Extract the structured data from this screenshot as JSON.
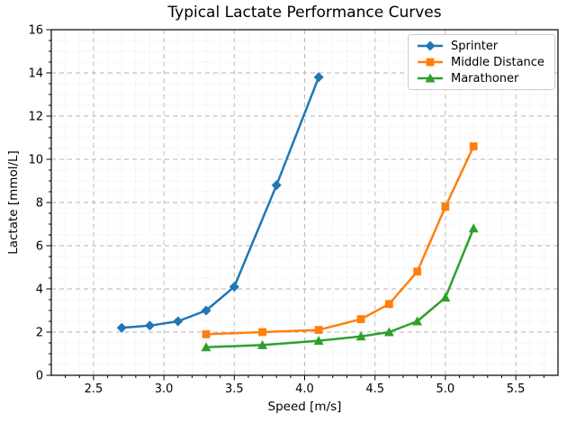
{
  "figure": {
    "background_color": "#ffffff",
    "spine_color": "#000000",
    "grid_major_color": "#b3b3b3",
    "grid_minor_color": "#d9d9d9"
  },
  "chart_data": {
    "type": "line",
    "title": "Typical Lactate Performance Curves",
    "xlabel": "Speed [m/s]",
    "ylabel": "Lactate [mmol/L]",
    "xlim": [
      2.2,
      5.8
    ],
    "ylim": [
      0,
      16
    ],
    "x_ticks": [
      2.5,
      3.0,
      3.5,
      4.0,
      4.5,
      5.0,
      5.5
    ],
    "x_tick_labels": [
      "2.5",
      "3.0",
      "3.5",
      "4.0",
      "4.5",
      "5.0",
      "5.5"
    ],
    "y_ticks": [
      0,
      2,
      4,
      6,
      8,
      10,
      12,
      14,
      16
    ],
    "y_tick_labels": [
      "0",
      "2",
      "4",
      "6",
      "8",
      "10",
      "12",
      "14",
      "16"
    ],
    "x_minor_step": 0.1,
    "y_minor_step": 0.5,
    "grid": {
      "major": "dashed",
      "minor": "dotted"
    },
    "legend": {
      "position": "upper right",
      "entries": [
        "Sprinter",
        "Middle Distance",
        "Marathoner"
      ]
    },
    "series": [
      {
        "name": "Sprinter",
        "color": "#1f77b4",
        "marker": "diamond",
        "x": [
          2.7,
          2.9,
          3.1,
          3.3,
          3.5,
          3.8,
          4.1
        ],
        "y": [
          2.2,
          2.3,
          2.5,
          3.0,
          4.1,
          8.8,
          13.8
        ]
      },
      {
        "name": "Middle Distance",
        "color": "#ff7f0e",
        "marker": "square",
        "x": [
          3.3,
          3.7,
          4.1,
          4.4,
          4.6,
          4.8,
          5.0,
          5.2
        ],
        "y": [
          1.9,
          2.0,
          2.1,
          2.6,
          3.3,
          4.8,
          7.8,
          10.6
        ]
      },
      {
        "name": "Marathoner",
        "color": "#2ca02c",
        "marker": "triangle_up",
        "x": [
          3.3,
          3.7,
          4.1,
          4.4,
          4.6,
          4.8,
          5.0,
          5.2
        ],
        "y": [
          1.3,
          1.4,
          1.6,
          1.8,
          2.0,
          2.5,
          3.6,
          6.8
        ]
      }
    ]
  }
}
